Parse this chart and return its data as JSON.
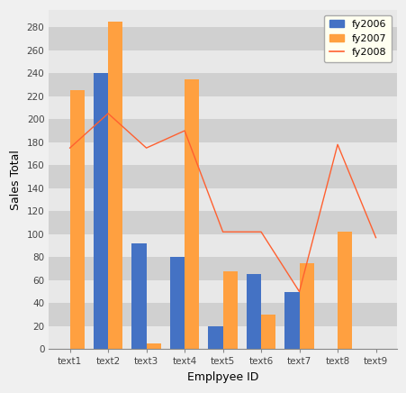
{
  "categories": [
    "text1",
    "text2",
    "text3",
    "text4",
    "text5",
    "text6",
    "text7",
    "text8",
    "text9"
  ],
  "fy2006": [
    0,
    240,
    92,
    80,
    20,
    65,
    50,
    0,
    0
  ],
  "fy2007": [
    225,
    285,
    5,
    235,
    68,
    30,
    75,
    102,
    0
  ],
  "fy2008": [
    175,
    205,
    175,
    190,
    102,
    102,
    50,
    178,
    97
  ],
  "bar_color_2006": "#4472C4",
  "bar_color_2007": "#FFA040",
  "line_color_2008": "#FF6030",
  "xlabel": "Emplpyee ID",
  "ylabel": "Sales Total",
  "ylim": [
    0,
    295
  ],
  "yticks": [
    0,
    20,
    40,
    60,
    80,
    100,
    120,
    140,
    160,
    180,
    200,
    220,
    240,
    260,
    280
  ],
  "stripe_light": "#E8E8E8",
  "stripe_dark": "#D0D0D0",
  "bg_outer": "#F0F0F0",
  "legend_labels": [
    "fy2006",
    "fy2007",
    "fy2008"
  ],
  "bar_width": 0.38,
  "figsize": [
    4.52,
    4.36
  ],
  "dpi": 100
}
